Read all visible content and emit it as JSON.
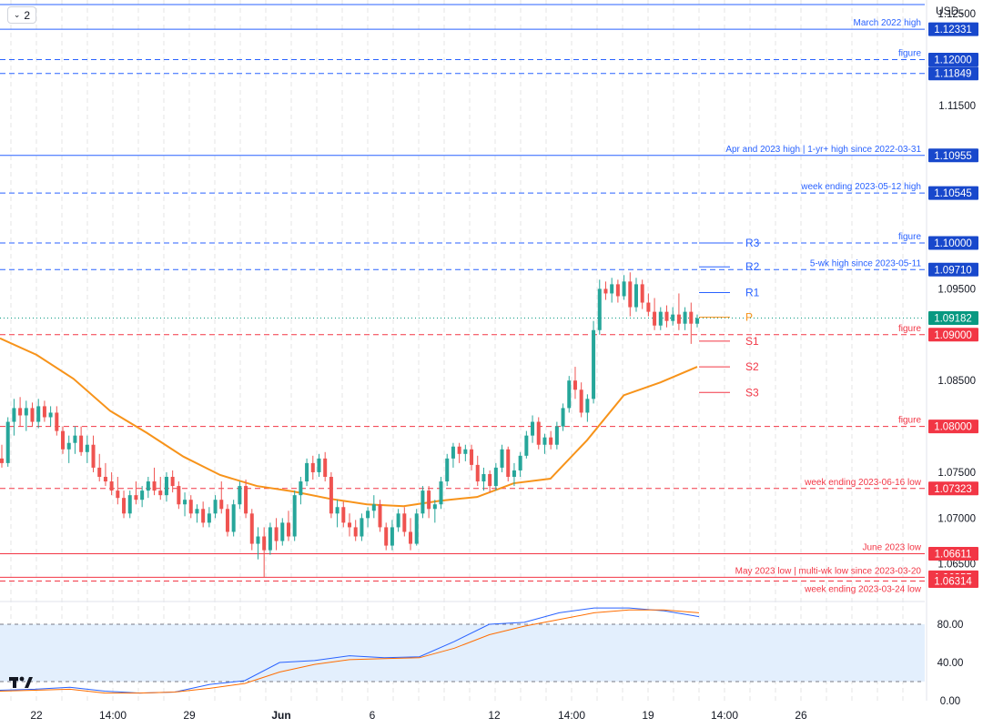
{
  "toolbar": {
    "interval_button": "2",
    "currency": "USD"
  },
  "colors": {
    "up": "#26a69a",
    "down": "#ef5350",
    "blue_level": "#2962ff",
    "red_level": "#f23645",
    "ma": "#f7931a",
    "stoch_k": "#2962ff",
    "stoch_d": "#ff6d00",
    "last_price": "#089981",
    "stoch_band": "#e3effd",
    "pivot": "#f7931a"
  },
  "chart_data": [
    {
      "type": "candlestick",
      "title": "",
      "ylim": [
        1.0615,
        1.1265
      ],
      "y_ticks": [
        "1.12500",
        "1.11500",
        "1.09500",
        "1.08500",
        "1.07500",
        "1.07000",
        "1.06500"
      ],
      "x_ticks": [
        "22",
        "14:00",
        "29",
        "Jun",
        "6",
        "12",
        "14:00",
        "19",
        "14:00",
        "26"
      ],
      "last_price": {
        "value": 1.09182,
        "label": "1.09182"
      },
      "levels": [
        {
          "label": "",
          "price": 1.126,
          "price_label": "",
          "color": "blue",
          "style": "solid"
        },
        {
          "label": "March 2022 high",
          "price": 1.12331,
          "price_label": "1.12331",
          "color": "blue",
          "style": "solid"
        },
        {
          "label": "figure",
          "price": 1.12,
          "price_label": "1.12000",
          "color": "blue",
          "style": "dashed"
        },
        {
          "label": "",
          "price": 1.11849,
          "price_label": "1.11849",
          "color": "blue",
          "style": "dashed"
        },
        {
          "label": "Apr and 2023 high | 1-yr+ high since 2022-03-31",
          "price": 1.10955,
          "price_label": "1.10955",
          "color": "blue",
          "style": "solid"
        },
        {
          "label": "week ending 2023-05-12 high",
          "price": 1.10545,
          "price_label": "1.10545",
          "color": "blue",
          "style": "dashed"
        },
        {
          "label": "figure",
          "price": 1.1,
          "price_label": "1.10000",
          "color": "blue",
          "style": "dashed"
        },
        {
          "label": "5-wk high since 2023-05-11",
          "price": 1.0971,
          "price_label": "1.09710",
          "color": "blue",
          "style": "dashed"
        },
        {
          "label": "figure",
          "price": 1.09,
          "price_label": "1.09000",
          "color": "red",
          "style": "dashed"
        },
        {
          "label": "figure",
          "price": 1.08,
          "price_label": "1.08000",
          "color": "red",
          "style": "dashed"
        },
        {
          "label": "week ending 2023-06-16 low",
          "price": 1.07323,
          "price_label": "1.07323",
          "color": "red",
          "style": "dashed"
        },
        {
          "label": "June 2023 low",
          "price": 1.06611,
          "price_label": "1.06611",
          "color": "red",
          "style": "solid"
        },
        {
          "label": "May 2023 low | multi-wk low since 2023-03-20",
          "price": 1.06355,
          "price_label": "1.06355",
          "color": "red",
          "style": "solid"
        },
        {
          "label": "week ending 2023-03-24 low",
          "price": 1.06314,
          "price_label": "1.06314",
          "color": "red",
          "style": "dashed"
        }
      ],
      "pivots": [
        {
          "name": "R3",
          "price": 1.1,
          "color": "blue"
        },
        {
          "name": "R2",
          "price": 1.0974,
          "color": "blue"
        },
        {
          "name": "R1",
          "price": 1.0946,
          "color": "blue"
        },
        {
          "name": "P",
          "price": 1.0919,
          "color": "orange"
        },
        {
          "name": "S1",
          "price": 1.0893,
          "color": "red"
        },
        {
          "name": "S2",
          "price": 1.0865,
          "color": "red"
        },
        {
          "name": "S3",
          "price": 1.0837,
          "color": "red"
        }
      ],
      "moving_average": [
        1.0896,
        1.0878,
        1.0852,
        1.0817,
        1.0793,
        1.0767,
        1.0747,
        1.0735,
        1.0729,
        1.0721,
        1.0715,
        1.0713,
        1.0719,
        1.0723,
        1.0738,
        1.0743,
        1.0785,
        1.0834,
        1.0848,
        1.0865
      ],
      "candles": [
        [
          1.0765,
          1.078,
          1.0755,
          1.076
        ],
        [
          1.076,
          1.081,
          1.0756,
          1.0805
        ],
        [
          1.0805,
          1.083,
          1.079,
          1.082
        ],
        [
          1.082,
          1.0832,
          1.08,
          1.0812
        ],
        [
          1.0812,
          1.0828,
          1.0795,
          1.082
        ],
        [
          1.082,
          1.0826,
          1.08,
          1.0805
        ],
        [
          1.0805,
          1.083,
          1.0798,
          1.0822
        ],
        [
          1.0822,
          1.0828,
          1.0805,
          1.081
        ],
        [
          1.081,
          1.0822,
          1.08,
          1.0815
        ],
        [
          1.0815,
          1.0822,
          1.079,
          1.0795
        ],
        [
          1.0795,
          1.08,
          1.077,
          1.0775
        ],
        [
          1.0775,
          1.079,
          1.076,
          1.0782
        ],
        [
          1.0782,
          1.08,
          1.077,
          1.079
        ],
        [
          1.079,
          1.08,
          1.0768,
          1.0772
        ],
        [
          1.0772,
          1.079,
          1.076,
          1.078
        ],
        [
          1.078,
          1.079,
          1.075,
          1.0755
        ],
        [
          1.0755,
          1.077,
          1.074,
          1.0745
        ],
        [
          1.0745,
          1.076,
          1.0735,
          1.074
        ],
        [
          1.074,
          1.075,
          1.0725,
          1.073
        ],
        [
          1.073,
          1.0745,
          1.0715,
          1.0722
        ],
        [
          1.0722,
          1.073,
          1.07,
          1.0705
        ],
        [
          1.0705,
          1.073,
          1.07,
          1.0725
        ],
        [
          1.0725,
          1.074,
          1.0715,
          1.072
        ],
        [
          1.072,
          1.0735,
          1.0712,
          1.073
        ],
        [
          1.073,
          1.0745,
          1.0722,
          1.074
        ],
        [
          1.074,
          1.0755,
          1.0725,
          1.073
        ],
        [
          1.073,
          1.0745,
          1.072,
          1.0725
        ],
        [
          1.0725,
          1.075,
          1.0718,
          1.0745
        ],
        [
          1.0745,
          1.0752,
          1.0728,
          1.0735
        ],
        [
          1.0735,
          1.074,
          1.071,
          1.0715
        ],
        [
          1.0715,
          1.0728,
          1.0702,
          1.072
        ],
        [
          1.072,
          1.0725,
          1.07,
          1.0705
        ],
        [
          1.0705,
          1.0715,
          1.0695,
          1.071
        ],
        [
          1.071,
          1.0718,
          1.069,
          1.0695
        ],
        [
          1.0695,
          1.0712,
          1.069,
          1.0705
        ],
        [
          1.0705,
          1.0725,
          1.07,
          1.072
        ],
        [
          1.072,
          1.074,
          1.0705,
          1.071
        ],
        [
          1.071,
          1.0715,
          1.068,
          1.0685
        ],
        [
          1.0685,
          1.072,
          1.068,
          1.0715
        ],
        [
          1.0715,
          1.074,
          1.071,
          1.0735
        ],
        [
          1.0735,
          1.0742,
          1.07,
          1.0705
        ],
        [
          1.0705,
          1.071,
          1.0665,
          1.0672
        ],
        [
          1.0672,
          1.069,
          1.0655,
          1.068
        ],
        [
          1.068,
          1.069,
          1.0635,
          1.0665
        ],
        [
          1.0665,
          1.0695,
          1.066,
          1.069
        ],
        [
          1.069,
          1.07,
          1.0665,
          1.0675
        ],
        [
          1.0675,
          1.07,
          1.067,
          1.0695
        ],
        [
          1.0695,
          1.0708,
          1.0675,
          1.068
        ],
        [
          1.068,
          1.073,
          1.0675,
          1.0725
        ],
        [
          1.0725,
          1.0745,
          1.0715,
          1.074
        ],
        [
          1.074,
          1.0765,
          1.0735,
          1.076
        ],
        [
          1.076,
          1.0768,
          1.0742,
          1.075
        ],
        [
          1.075,
          1.077,
          1.0745,
          1.0765
        ],
        [
          1.0765,
          1.0772,
          1.074,
          1.0745
        ],
        [
          1.0745,
          1.075,
          1.07,
          1.0705
        ],
        [
          1.0705,
          1.072,
          1.069,
          1.0712
        ],
        [
          1.0712,
          1.0718,
          1.069,
          1.0695
        ],
        [
          1.0695,
          1.0705,
          1.068,
          1.069
        ],
        [
          1.069,
          1.0698,
          1.0675,
          1.068
        ],
        [
          1.068,
          1.0705,
          1.0675,
          1.07
        ],
        [
          1.07,
          1.0712,
          1.069,
          1.0708
        ],
        [
          1.0708,
          1.0725,
          1.07,
          1.0715
        ],
        [
          1.0715,
          1.072,
          1.0685,
          1.069
        ],
        [
          1.069,
          1.0695,
          1.0665,
          1.067
        ],
        [
          1.067,
          1.0698,
          1.0665,
          1.069
        ],
        [
          1.069,
          1.071,
          1.0685,
          1.0705
        ],
        [
          1.0705,
          1.0712,
          1.068,
          1.0685
        ],
        [
          1.0685,
          1.07,
          1.0665,
          1.0672
        ],
        [
          1.0672,
          1.071,
          1.067,
          1.0705
        ],
        [
          1.0705,
          1.0735,
          1.07,
          1.073
        ],
        [
          1.073,
          1.0735,
          1.07,
          1.071
        ],
        [
          1.071,
          1.072,
          1.0695,
          1.0715
        ],
        [
          1.0715,
          1.0745,
          1.071,
          1.074
        ],
        [
          1.074,
          1.077,
          1.0735,
          1.0765
        ],
        [
          1.0765,
          1.0782,
          1.0755,
          1.0778
        ],
        [
          1.0778,
          1.0782,
          1.076,
          1.077
        ],
        [
          1.077,
          1.078,
          1.0762,
          1.0775
        ],
        [
          1.0775,
          1.078,
          1.0752,
          1.0758
        ],
        [
          1.0758,
          1.0768,
          1.0735,
          1.074
        ],
        [
          1.074,
          1.0755,
          1.073,
          1.0748
        ],
        [
          1.0748,
          1.0752,
          1.0728,
          1.0735
        ],
        [
          1.0735,
          1.076,
          1.073,
          1.0755
        ],
        [
          1.0755,
          1.078,
          1.075,
          1.0775
        ],
        [
          1.0775,
          1.0778,
          1.074,
          1.0745
        ],
        [
          1.0745,
          1.076,
          1.0735,
          1.0752
        ],
        [
          1.0752,
          1.0772,
          1.0745,
          1.0768
        ],
        [
          1.0768,
          1.0795,
          1.0765,
          1.079
        ],
        [
          1.079,
          1.0812,
          1.0782,
          1.0805
        ],
        [
          1.0805,
          1.081,
          1.0775,
          1.078
        ],
        [
          1.078,
          1.0792,
          1.077,
          1.0788
        ],
        [
          1.0788,
          1.0795,
          1.0775,
          1.078
        ],
        [
          1.078,
          1.0805,
          1.0775,
          1.08
        ],
        [
          1.08,
          1.0825,
          1.0795,
          1.082
        ],
        [
          1.082,
          1.0855,
          1.0815,
          1.085
        ],
        [
          1.085,
          1.0865,
          1.083,
          1.084
        ],
        [
          1.084,
          1.0848,
          1.081,
          1.0815
        ],
        [
          1.0815,
          1.0835,
          1.0805,
          1.083
        ],
        [
          1.083,
          1.0915,
          1.0825,
          1.0905
        ],
        [
          1.0905,
          1.096,
          1.09,
          1.095
        ],
        [
          1.095,
          1.0958,
          1.0938,
          1.0945
        ],
        [
          1.0945,
          1.0962,
          1.0935,
          1.0955
        ],
        [
          1.0955,
          1.096,
          1.0935,
          1.0942
        ],
        [
          1.0942,
          1.0965,
          1.0938,
          1.0958
        ],
        [
          1.0958,
          1.0968,
          1.092,
          1.093
        ],
        [
          1.093,
          1.0962,
          1.0925,
          1.0955
        ],
        [
          1.0955,
          1.096,
          1.0928,
          1.0935
        ],
        [
          1.0935,
          1.0945,
          1.092,
          1.0925
        ],
        [
          1.0925,
          1.094,
          1.0905,
          1.091
        ],
        [
          1.091,
          1.093,
          1.0905,
          1.0925
        ],
        [
          1.0925,
          1.0932,
          1.0908,
          1.0915
        ],
        [
          1.0915,
          1.093,
          1.091,
          1.0922
        ],
        [
          1.0922,
          1.0945,
          1.0905,
          1.0912
        ],
        [
          1.0912,
          1.093,
          1.0905,
          1.0925
        ],
        [
          1.0925,
          1.0935,
          1.089,
          1.0912
        ],
        [
          1.0912,
          1.0922,
          1.0908,
          1.0918
        ]
      ]
    },
    {
      "type": "line",
      "name": "stochastic",
      "ylim": [
        0,
        100
      ],
      "y_ticks": [
        "80.00",
        "40.00",
        "0.00"
      ],
      "band": [
        20,
        80
      ],
      "series": [
        {
          "name": "",
          "values": [
            11,
            12,
            14,
            10,
            8,
            9,
            17,
            21,
            40,
            42,
            47,
            45,
            46,
            62,
            80,
            82,
            92,
            97,
            97,
            94,
            88
          ]
        },
        {
          "name": "",
          "values": [
            10,
            11,
            12,
            8,
            8,
            9,
            13,
            18,
            30,
            38,
            43,
            44,
            45,
            55,
            69,
            78,
            85,
            92,
            95,
            95,
            92
          ]
        }
      ]
    }
  ]
}
